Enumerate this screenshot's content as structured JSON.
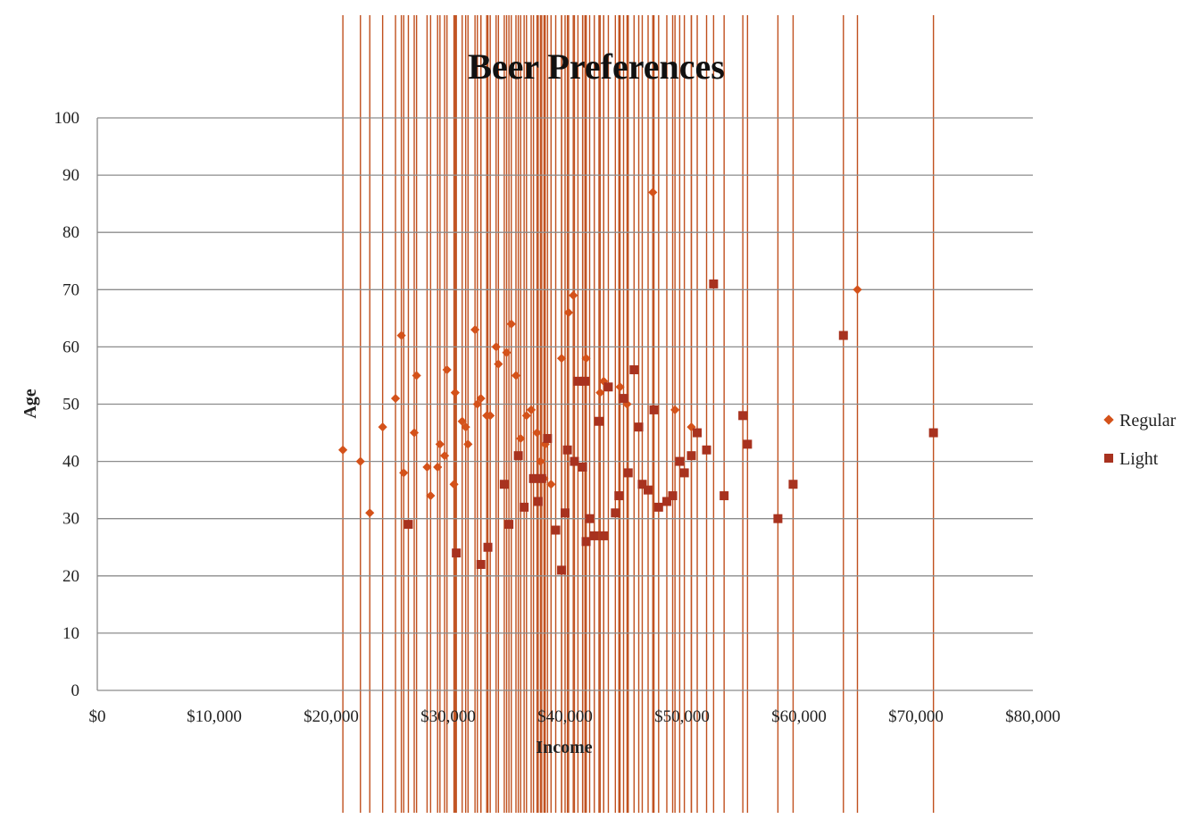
{
  "chart_data": {
    "type": "scatter",
    "title": "Beer Preferences",
    "xlabel": "Income",
    "ylabel": "Age",
    "xlim": [
      0,
      80000
    ],
    "ylim": [
      0,
      100
    ],
    "x_ticks": [
      "$0",
      "$10,000",
      "$20,000",
      "$30,000",
      "$40,000",
      "$50,000",
      "$60,000",
      "$70,000",
      "$80,000"
    ],
    "y_ticks": [
      "0",
      "10",
      "20",
      "30",
      "40",
      "50",
      "60",
      "70",
      "80",
      "90",
      "100"
    ],
    "grid": "horizontal",
    "legend_position": "right",
    "drop_lines": true,
    "colors": {
      "regular": "#D4521A",
      "light": "#A8321F",
      "drop_line": "#C0501E",
      "grid": "#8C8C8C"
    },
    "series": [
      {
        "name": "Regular",
        "marker": "diamond",
        "points": [
          [
            21000,
            42
          ],
          [
            22500,
            40
          ],
          [
            23300,
            31
          ],
          [
            24400,
            46
          ],
          [
            25500,
            51
          ],
          [
            26000,
            62
          ],
          [
            26200,
            38
          ],
          [
            27100,
            45
          ],
          [
            27300,
            55
          ],
          [
            28200,
            39
          ],
          [
            28500,
            34
          ],
          [
            29100,
            39
          ],
          [
            29300,
            43
          ],
          [
            29700,
            41
          ],
          [
            29900,
            56
          ],
          [
            30500,
            36
          ],
          [
            30600,
            52
          ],
          [
            31200,
            47
          ],
          [
            31500,
            46
          ],
          [
            31700,
            43
          ],
          [
            32300,
            63
          ],
          [
            32500,
            50
          ],
          [
            32800,
            51
          ],
          [
            33300,
            48
          ],
          [
            33600,
            48
          ],
          [
            34100,
            60
          ],
          [
            34300,
            57
          ],
          [
            35000,
            59
          ],
          [
            35400,
            64
          ],
          [
            35800,
            55
          ],
          [
            36200,
            44
          ],
          [
            36700,
            48
          ],
          [
            37100,
            49
          ],
          [
            37600,
            45
          ],
          [
            37900,
            40
          ],
          [
            38200,
            37
          ],
          [
            38300,
            43
          ],
          [
            38800,
            36
          ],
          [
            39700,
            58
          ],
          [
            40300,
            66
          ],
          [
            40700,
            69
          ],
          [
            41500,
            54
          ],
          [
            41800,
            58
          ],
          [
            43000,
            52
          ],
          [
            43300,
            54
          ],
          [
            44700,
            53
          ],
          [
            45300,
            50
          ],
          [
            47500,
            87
          ],
          [
            49400,
            49
          ],
          [
            50800,
            46
          ],
          [
            65000,
            70
          ]
        ]
      },
      {
        "name": "Light",
        "marker": "square",
        "points": [
          [
            26600,
            29
          ],
          [
            30700,
            24
          ],
          [
            32800,
            22
          ],
          [
            33400,
            25
          ],
          [
            34800,
            36
          ],
          [
            35200,
            29
          ],
          [
            36000,
            41
          ],
          [
            36500,
            32
          ],
          [
            37300,
            37
          ],
          [
            37700,
            33
          ],
          [
            38000,
            37
          ],
          [
            38500,
            44
          ],
          [
            39200,
            28
          ],
          [
            39700,
            21
          ],
          [
            40000,
            31
          ],
          [
            40200,
            42
          ],
          [
            40800,
            40
          ],
          [
            41100,
            54
          ],
          [
            41500,
            39
          ],
          [
            41700,
            54
          ],
          [
            41800,
            26
          ],
          [
            42100,
            30
          ],
          [
            42500,
            27
          ],
          [
            42900,
            47
          ],
          [
            43300,
            27
          ],
          [
            43700,
            53
          ],
          [
            44300,
            31
          ],
          [
            44600,
            34
          ],
          [
            45000,
            51
          ],
          [
            45400,
            38
          ],
          [
            45900,
            56
          ],
          [
            46300,
            46
          ],
          [
            46600,
            36
          ],
          [
            47100,
            35
          ],
          [
            47600,
            49
          ],
          [
            48000,
            32
          ],
          [
            48700,
            33
          ],
          [
            49200,
            34
          ],
          [
            49800,
            40
          ],
          [
            50200,
            38
          ],
          [
            50800,
            41
          ],
          [
            51300,
            45
          ],
          [
            52100,
            42
          ],
          [
            52700,
            71
          ],
          [
            53600,
            34
          ],
          [
            55200,
            48
          ],
          [
            55600,
            43
          ],
          [
            58200,
            30
          ],
          [
            59500,
            36
          ],
          [
            63800,
            62
          ],
          [
            71500,
            45
          ]
        ]
      }
    ]
  }
}
